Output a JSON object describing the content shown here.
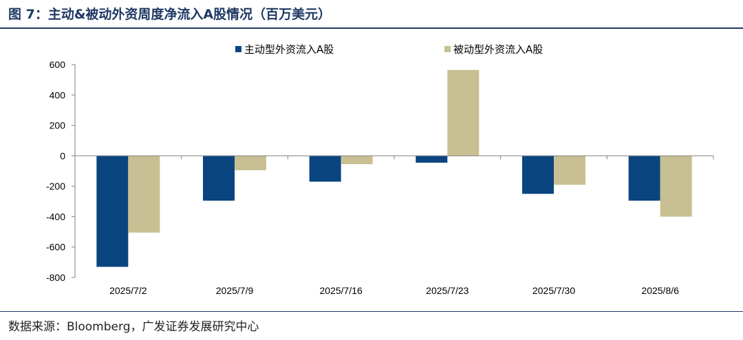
{
  "header": {
    "title": "图 7：主动&被动外资周度净流入A股情况（百万美元）"
  },
  "footer": {
    "source": "数据来源：Bloomberg，广发证券发展研究中心"
  },
  "chart_data": {
    "type": "bar",
    "categories": [
      "2025/7/2",
      "2025/7/9",
      "2025/7/16",
      "2025/7/23",
      "2025/7/30",
      "2025/8/6"
    ],
    "series": [
      {
        "name": "主动型外资流入A股",
        "color": "#0a4580",
        "values": [
          -730,
          -295,
          -170,
          -45,
          -250,
          -295
        ]
      },
      {
        "name": "被动型外资流入A股",
        "color": "#c8bf92",
        "values": [
          -505,
          -95,
          -55,
          565,
          -190,
          -400
        ]
      }
    ],
    "ylim": [
      -800,
      600
    ],
    "yticks": [
      600,
      400,
      200,
      0,
      -200,
      -400,
      -600,
      -800
    ],
    "legend": "top",
    "grid": false,
    "xlabel": "",
    "ylabel": ""
  }
}
